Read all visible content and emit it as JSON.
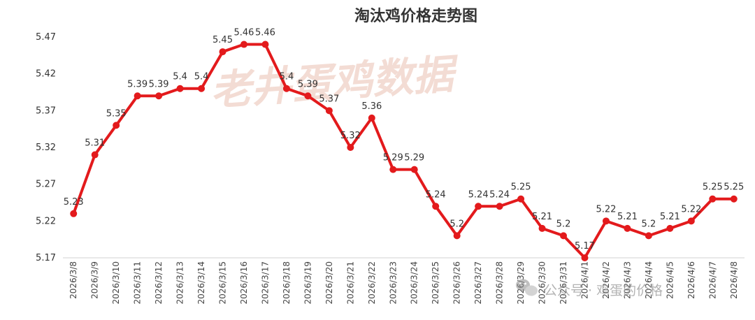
{
  "chart_data": {
    "type": "line",
    "title": "淘汰鸡价格走势图",
    "xlabel": "",
    "ylabel": "",
    "ylim": [
      5.17,
      5.47
    ],
    "yticks": [
      "5.17",
      "5.22",
      "5.27",
      "5.32",
      "5.37",
      "5.42",
      "5.47"
    ],
    "grid": false,
    "legend": "none",
    "line_color": "#e31a1c",
    "categories": [
      "2026/3/8",
      "2026/3/9",
      "2026/3/10",
      "2026/3/11",
      "2026/3/12",
      "2026/3/13",
      "2026/3/14",
      "2026/3/15",
      "2026/3/16",
      "2026/3/17",
      "2026/3/18",
      "2026/3/19",
      "2026/3/20",
      "2026/3/21",
      "2026/3/22",
      "2026/3/23",
      "2026/3/24",
      "2026/3/25",
      "2026/3/26",
      "2026/3/27",
      "2026/3/28",
      "2026/3/29",
      "2026/3/30",
      "2026/3/31",
      "2026/4/1",
      "2026/4/2",
      "2026/4/3",
      "2026/4/4",
      "2026/4/5",
      "2026/4/6",
      "2026/4/7",
      "2026/4/8"
    ],
    "values": [
      5.23,
      5.31,
      5.35,
      5.39,
      5.39,
      5.4,
      5.4,
      5.45,
      5.46,
      5.46,
      5.4,
      5.39,
      5.37,
      5.32,
      5.36,
      5.29,
      5.29,
      5.24,
      5.2,
      5.24,
      5.24,
      5.25,
      5.21,
      5.2,
      5.17,
      5.22,
      5.21,
      5.2,
      5.21,
      5.22,
      5.25,
      5.25
    ]
  },
  "watermark": {
    "text": "老井蛋鸡数据",
    "source": "公众号 · 鸡蛋的价格"
  }
}
